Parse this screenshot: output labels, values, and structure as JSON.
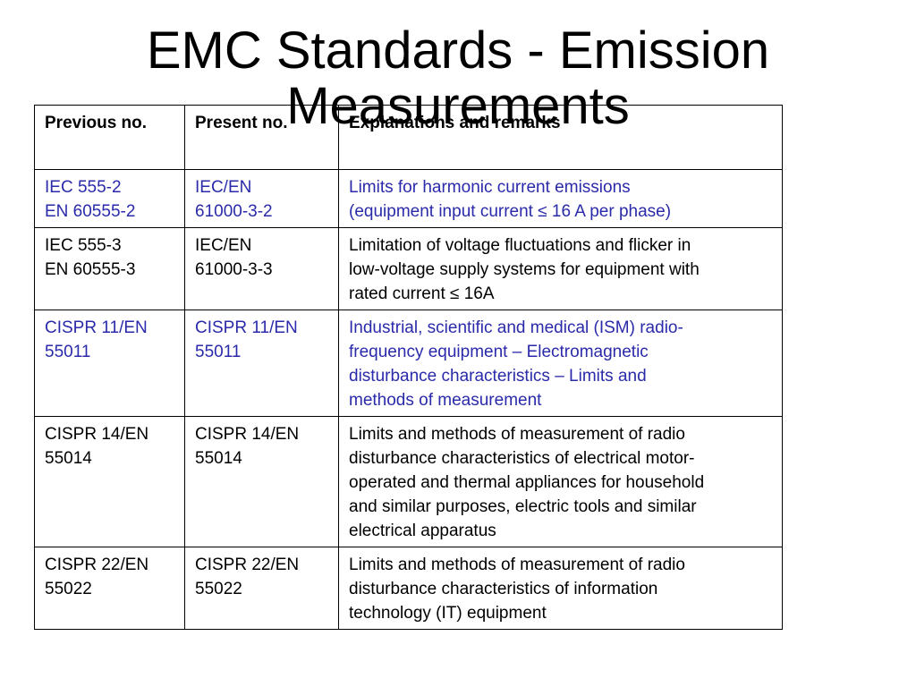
{
  "title": "EMC Standards -  Emission Measurements",
  "table": {
    "headers": [
      "Previous no.",
      "Present no.",
      "Explanations and remarks"
    ],
    "rows": [
      {
        "previous": [
          "IEC 555-2",
          "EN 60555-2"
        ],
        "present": [
          "IEC/EN",
          "61000-3-2"
        ],
        "remarks": [
          "Limits for harmonic current emissions",
          "(equipment input current ≤ 16 A per phase)"
        ],
        "color": "#2a2aaa"
      },
      {
        "previous": [
          "IEC 555-3",
          "EN 60555-3"
        ],
        "present": [
          "IEC/EN",
          "61000-3-3"
        ],
        "remarks": [
          "Limitation of voltage fluctuations and flicker in",
          "low-voltage supply systems for equipment with",
          "rated current ≤ 16A"
        ],
        "color": "#000000"
      },
      {
        "previous": [
          "CISPR 11/EN",
          "55011"
        ],
        "present": [
          "CISPR 11/EN",
          "55011"
        ],
        "remarks": [
          "Industrial, scientific and medical (ISM) radio-",
          "frequency equipment – Electromagnetic",
          "disturbance characteristics – Limits and",
          "methods of measurement"
        ],
        "color": "#2a2aaa"
      },
      {
        "previous": [
          "CISPR 14/EN",
          "55014"
        ],
        "present": [
          "CISPR 14/EN",
          "55014"
        ],
        "remarks": [
          "Limits and methods of measurement of radio",
          "disturbance characteristics of electrical motor-",
          "operated and thermal appliances for household",
          "and similar purposes, electric tools and similar",
          "electrical apparatus"
        ],
        "color": "#000000"
      },
      {
        "previous": [
          "CISPR 22/EN",
          "55022"
        ],
        "present": [
          "CISPR 22/EN",
          "55022"
        ],
        "remarks": [
          "Limits and methods of measurement of radio",
          "disturbance characteristics of information",
          "technology (IT) equipment"
        ],
        "color": "#000000"
      }
    ]
  }
}
